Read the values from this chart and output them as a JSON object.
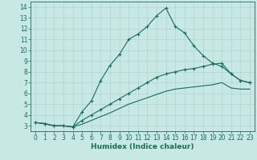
{
  "xlabel": "Humidex (Indice chaleur)",
  "bg_color": "#c8e8e4",
  "grid_color": "#b0d4d0",
  "line_color": "#1a6b5a",
  "xlim": [
    -0.5,
    23.5
  ],
  "ylim": [
    2.5,
    14.5
  ],
  "xticks": [
    0,
    1,
    2,
    3,
    4,
    5,
    6,
    7,
    8,
    9,
    10,
    11,
    12,
    13,
    14,
    15,
    16,
    17,
    18,
    19,
    20,
    21,
    22,
    23
  ],
  "yticks": [
    3,
    4,
    5,
    6,
    7,
    8,
    9,
    10,
    11,
    12,
    13,
    14
  ],
  "line1_x": [
    0,
    1,
    2,
    3,
    4,
    5,
    6,
    7,
    8,
    9,
    10,
    11,
    12,
    13,
    14,
    15,
    16,
    17,
    18,
    19,
    20,
    21,
    22,
    23
  ],
  "line1_y": [
    3.3,
    3.2,
    3.0,
    3.0,
    2.9,
    4.3,
    5.3,
    7.2,
    8.6,
    9.6,
    11.0,
    11.5,
    12.2,
    13.2,
    13.9,
    12.2,
    11.6,
    10.4,
    9.5,
    8.8,
    8.5,
    7.8,
    7.2,
    7.0
  ],
  "line2_x": [
    0,
    1,
    2,
    3,
    4,
    5,
    6,
    7,
    8,
    9,
    10,
    11,
    12,
    13,
    14,
    15,
    16,
    17,
    18,
    19,
    20,
    21,
    22,
    23
  ],
  "line2_y": [
    3.3,
    3.2,
    3.0,
    3.0,
    2.9,
    3.5,
    4.0,
    4.5,
    5.0,
    5.5,
    6.0,
    6.5,
    7.0,
    7.5,
    7.8,
    8.0,
    8.2,
    8.3,
    8.5,
    8.7,
    8.8,
    7.8,
    7.2,
    7.0
  ],
  "line3_x": [
    0,
    1,
    2,
    3,
    4,
    5,
    6,
    7,
    8,
    9,
    10,
    11,
    12,
    13,
    14,
    15,
    16,
    17,
    18,
    19,
    20,
    21,
    22,
    23
  ],
  "line3_y": [
    3.3,
    3.2,
    3.0,
    3.0,
    2.9,
    3.15,
    3.5,
    3.85,
    4.2,
    4.6,
    5.0,
    5.3,
    5.6,
    5.9,
    6.2,
    6.4,
    6.5,
    6.6,
    6.7,
    6.8,
    7.0,
    6.5,
    6.4,
    6.4
  ],
  "tick_color": "#1a6b5a",
  "axis_color": "#1a6b5a",
  "label_fontsize": 6.5,
  "tick_fontsize": 5.5
}
